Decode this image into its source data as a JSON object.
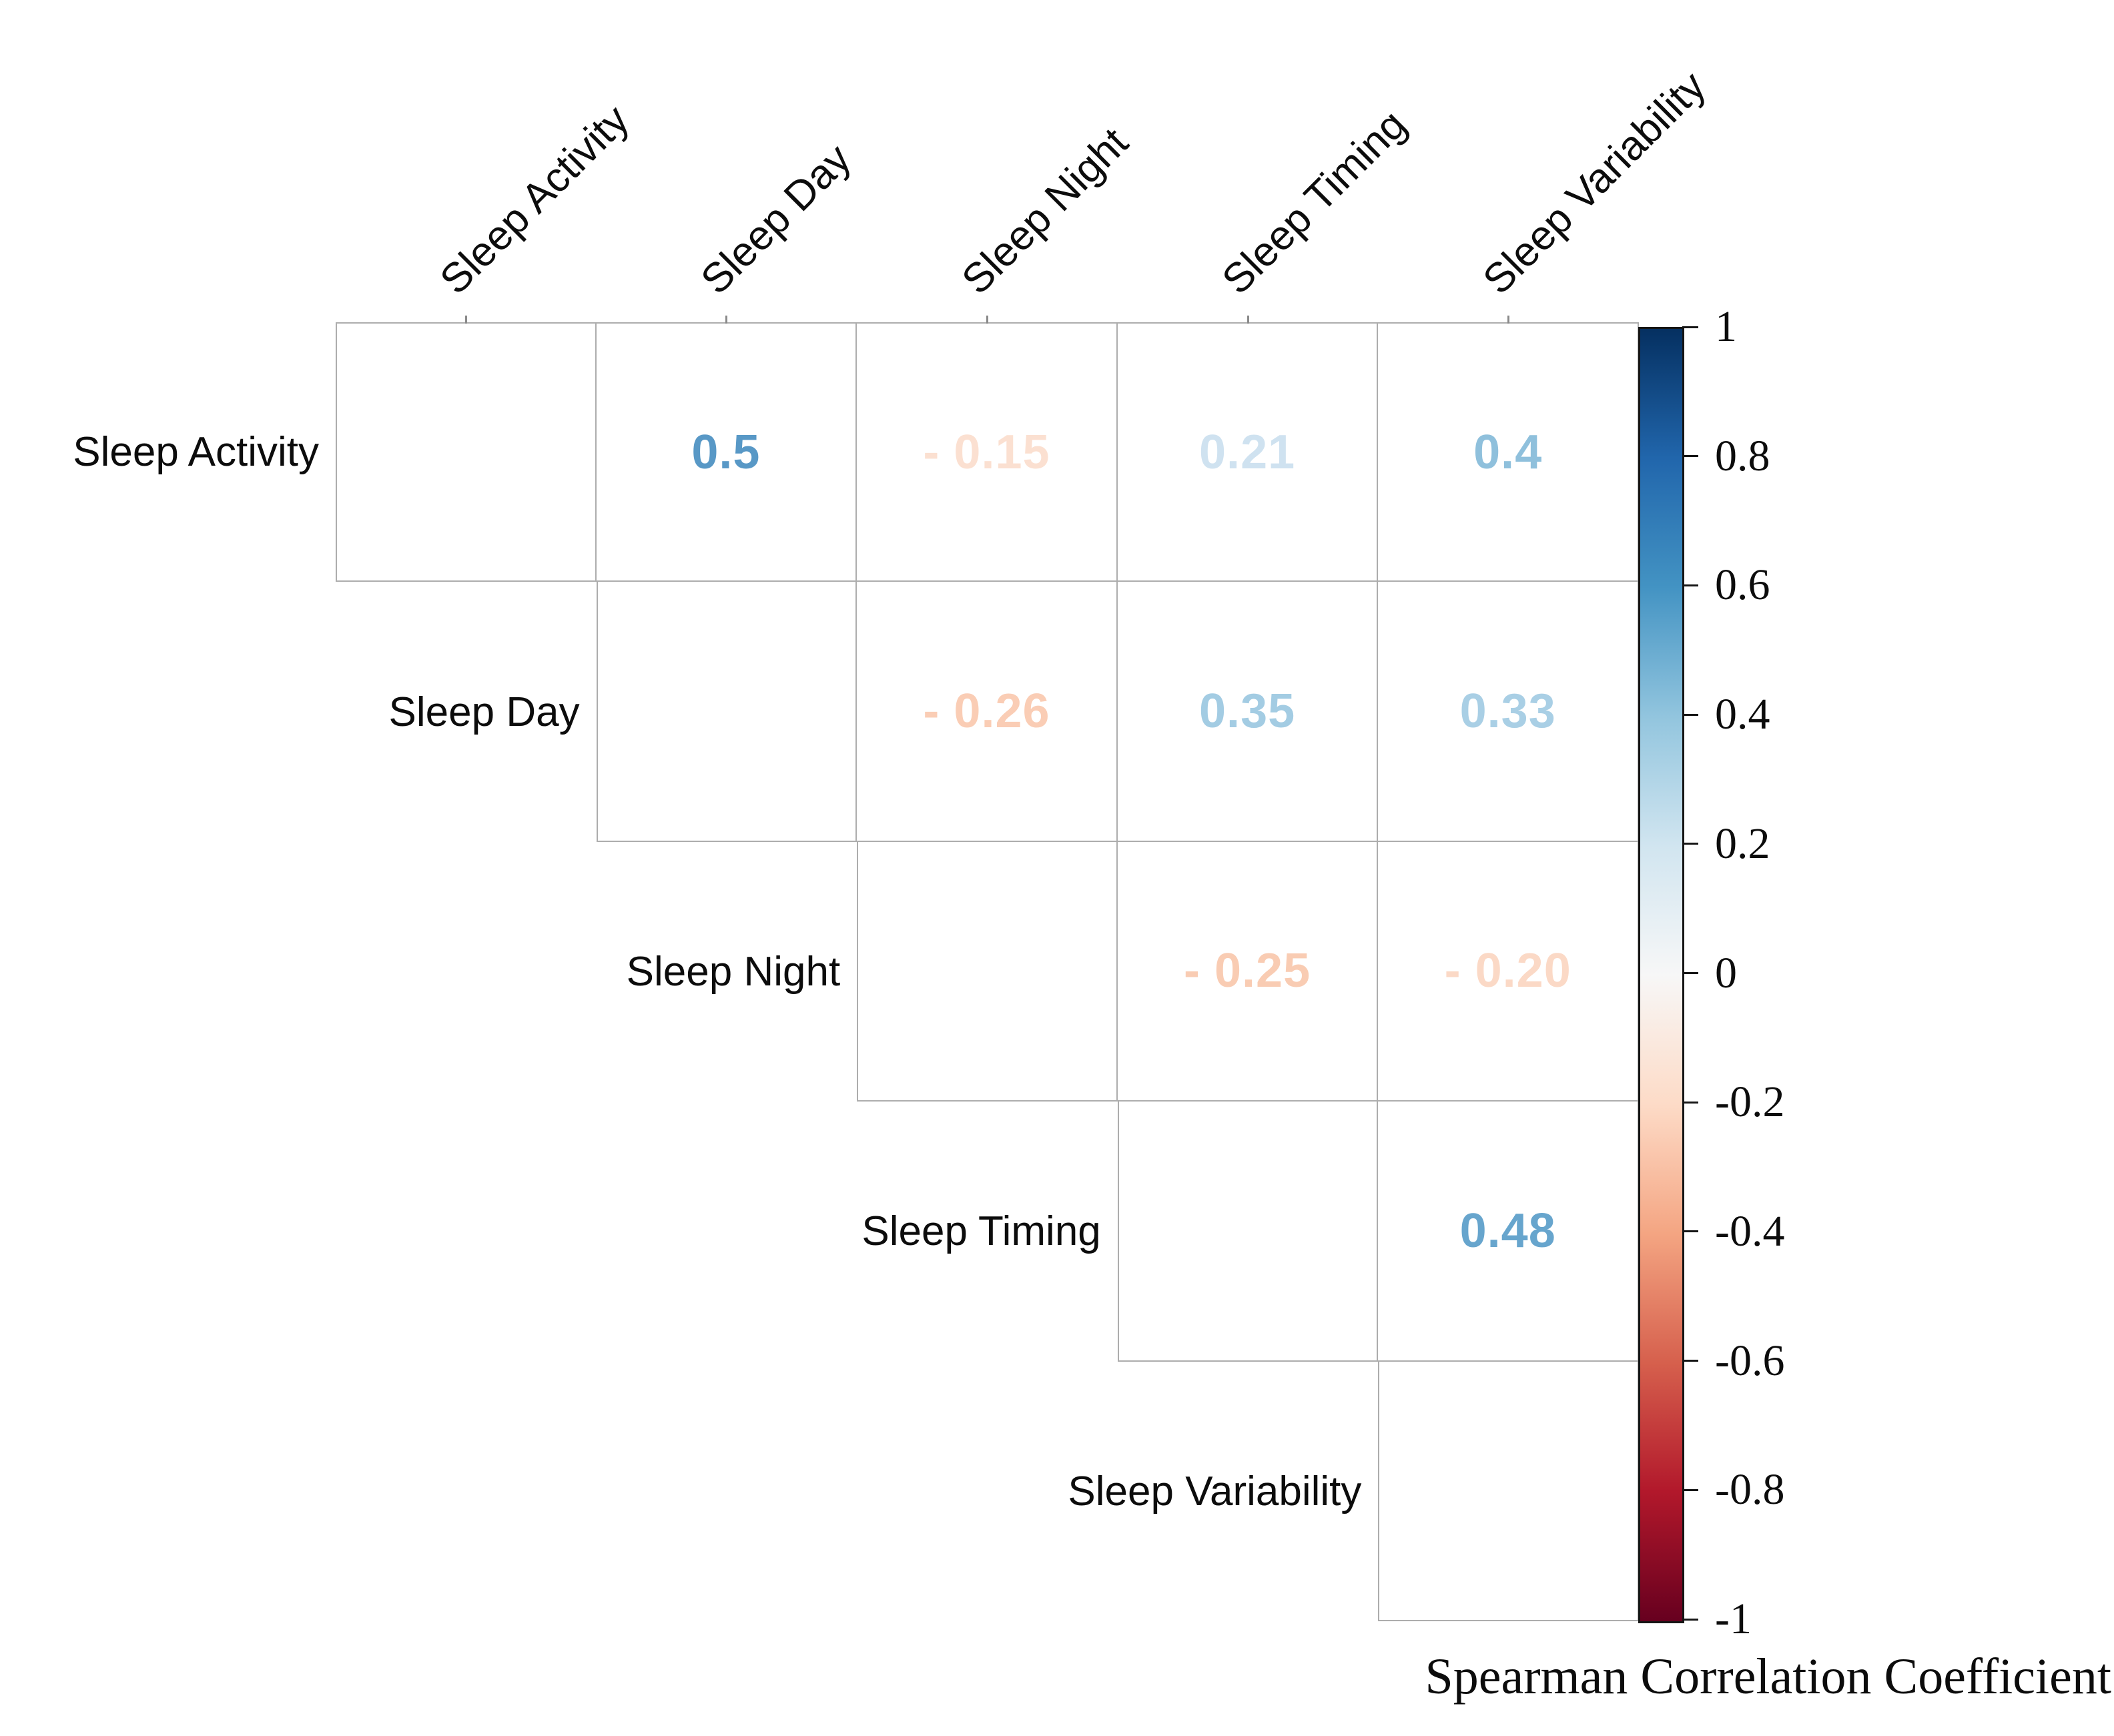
{
  "chart_data": {
    "type": "heatmap",
    "subtype": "correlation-matrix-upper-triangle",
    "variables": [
      "Sleep Activity",
      "Sleep Day",
      "Sleep Night",
      "Sleep Timing",
      "Sleep Variability"
    ],
    "correlations": [
      {
        "x": "Sleep Activity",
        "y": "Sleep Day",
        "value": 0.5
      },
      {
        "x": "Sleep Activity",
        "y": "Sleep Night",
        "value": -0.15
      },
      {
        "x": "Sleep Activity",
        "y": "Sleep Timing",
        "value": 0.21
      },
      {
        "x": "Sleep Activity",
        "y": "Sleep Variability",
        "value": 0.4
      },
      {
        "x": "Sleep Day",
        "y": "Sleep Night",
        "value": -0.26
      },
      {
        "x": "Sleep Day",
        "y": "Sleep Timing",
        "value": 0.35
      },
      {
        "x": "Sleep Day",
        "y": "Sleep Variability",
        "value": 0.33
      },
      {
        "x": "Sleep Night",
        "y": "Sleep Timing",
        "value": -0.25
      },
      {
        "x": "Sleep Night",
        "y": "Sleep Variability",
        "value": -0.2
      },
      {
        "x": "Sleep Timing",
        "y": "Sleep Variability",
        "value": 0.48
      }
    ],
    "cells": [
      {
        "row": 0,
        "col": 1,
        "label": "0.5",
        "color": "#5898C6"
      },
      {
        "row": 0,
        "col": 2,
        "label": "- 0.15",
        "color": "#FBE0D1"
      },
      {
        "row": 0,
        "col": 3,
        "label": "0.21",
        "color": "#CFE2F0"
      },
      {
        "row": 0,
        "col": 4,
        "label": "0.4",
        "color": "#8FC0DC"
      },
      {
        "row": 1,
        "col": 2,
        "label": "- 0.26",
        "color": "#FACDB5"
      },
      {
        "row": 1,
        "col": 3,
        "label": "0.35",
        "color": "#A3CCE3"
      },
      {
        "row": 1,
        "col": 4,
        "label": "0.33",
        "color": "#A9CFE5"
      },
      {
        "row": 2,
        "col": 3,
        "label": "- 0.25",
        "color": "#F9CCB3"
      },
      {
        "row": 2,
        "col": 4,
        "label": "- 0.20",
        "color": "#FBD9C6"
      },
      {
        "row": 3,
        "col": 4,
        "label": "0.48",
        "color": "#67A5CD"
      }
    ],
    "colorbar": {
      "label": "Spearman Correlation Coefficient",
      "min": -1,
      "max": 1,
      "ticks": [
        "1",
        "0.8",
        "0.6",
        "0.4",
        "0.2",
        "0",
        "-0.2",
        "-0.4",
        "-0.6",
        "-0.8",
        "-1"
      ],
      "gradient_top_to_bottom": [
        "#053061",
        "#2166AC",
        "#4393C3",
        "#92C5DE",
        "#D1E5F0",
        "#F7F7F7",
        "#FDDBC7",
        "#F4A582",
        "#D6604D",
        "#B2182B",
        "#67001F"
      ]
    },
    "layout_hints": {
      "grid": "on",
      "grid_color": "#ADADAD",
      "matrix_shape": "upper triangle with empty diagonal cells",
      "column_labels_rotation_deg": 45,
      "colorbar_position": "right"
    }
  }
}
